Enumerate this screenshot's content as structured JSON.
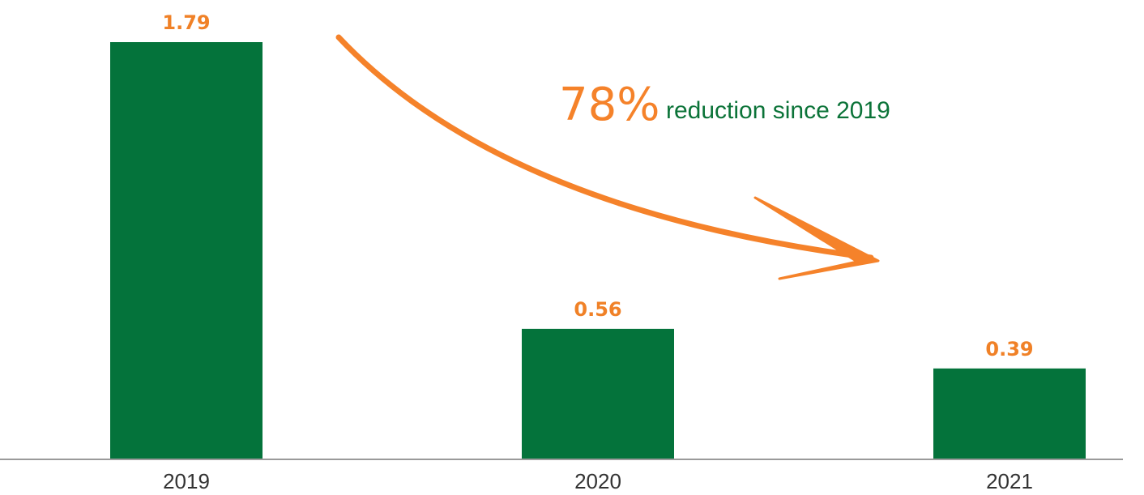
{
  "chart_data": {
    "type": "bar",
    "categories": [
      "2019",
      "2020",
      "2021"
    ],
    "values": [
      1.79,
      0.56,
      0.39
    ],
    "value_labels": [
      "1.79",
      "0.56",
      "0.39"
    ],
    "title": "",
    "xlabel": "",
    "ylabel": "",
    "ylim": [
      0,
      1.9
    ],
    "grid": false,
    "legend": "none",
    "annotation": {
      "percent": "78%",
      "text": "reduction since 2019",
      "arrow": "curved from 2019 bar toward 2021 bar"
    }
  },
  "colors": {
    "bar": "#04733b",
    "value_label": "#f08127",
    "arrow": "#f5822a",
    "annotation_text": "#0b7338",
    "tick_label": "#333333",
    "axis_line": "#9a9a9a"
  }
}
